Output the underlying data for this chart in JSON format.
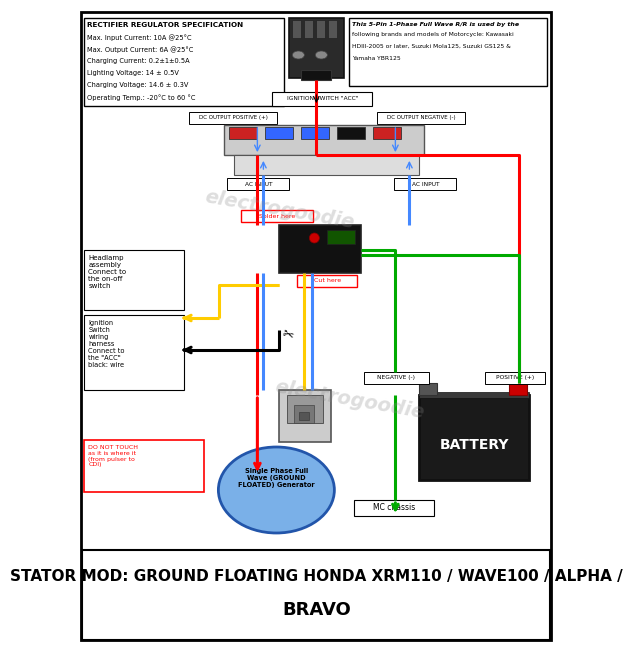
{
  "bg": "#ffffff",
  "title": "STATOR MOD: GROUND FLOATING HONDA XRM110 / WAVE100 / ALPHA /\nBRAVO",
  "spec_title": "RECTIFIER REGULATOR SPECIFICATION",
  "spec_lines": [
    "Max. Input Current: 10A @25°C",
    "Max. Output Current: 6A @25°C",
    "Charging Current: 0.2±1±0.5A",
    "Lighting Voltage: 14 ± 0.5V",
    "Charging Voltage: 14.6 ± 0.3V",
    "Operating Temp.: -20°C to 60 °C"
  ],
  "info_text": "This 5-Pin 1-Phase Full Wave R/R is used by the\nfollowing brands and models of Motorcycle: Kawasaki\nHDIII-2005 or later, Suzuki Mola125, Suzuki GS125 &\nYamaha YBR125",
  "watermark": "electrogoodie",
  "red": "#ff0000",
  "green": "#00aa00",
  "yellow": "#ffcc00",
  "blue": "#4488ff",
  "black": "#000000",
  "darkgray": "#333333",
  "midgray": "#777777",
  "lightgray": "#bbbbbb",
  "darkbg": "#222222",
  "battery_color": "#1a1a1a",
  "genblu": "#7ab0e8",
  "genedge": "#2255aa"
}
